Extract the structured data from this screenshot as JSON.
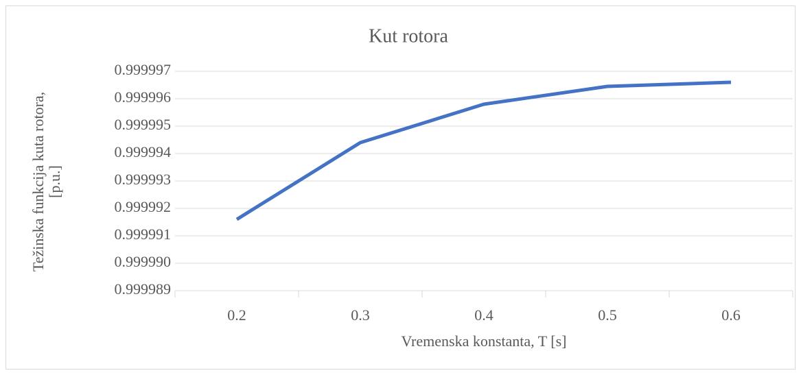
{
  "chart_data": {
    "type": "line",
    "title": "Kut rotora",
    "x_label": "Vremenska konstanta, T [s]",
    "y_label": [
      "Težinska funkcija kuta rotora,",
      "[p.u.]"
    ],
    "categories": [
      "0.2",
      "0.3",
      "0.4",
      "0.5",
      "0.6"
    ],
    "series": [
      {
        "color": "#4472c4",
        "values": [
          0.9999916,
          0.9999944,
          0.9999958,
          0.99999645,
          0.9999966
        ]
      }
    ],
    "ylim": [
      0.999989,
      0.999997
    ],
    "yticks": [
      0.999989,
      {
        "value": 0.99999,
        "label": "0.999990"
      },
      0.999991,
      0.999992,
      0.999993,
      0.999994,
      0.999995,
      0.999996,
      0.999997
    ],
    "grid": true
  }
}
